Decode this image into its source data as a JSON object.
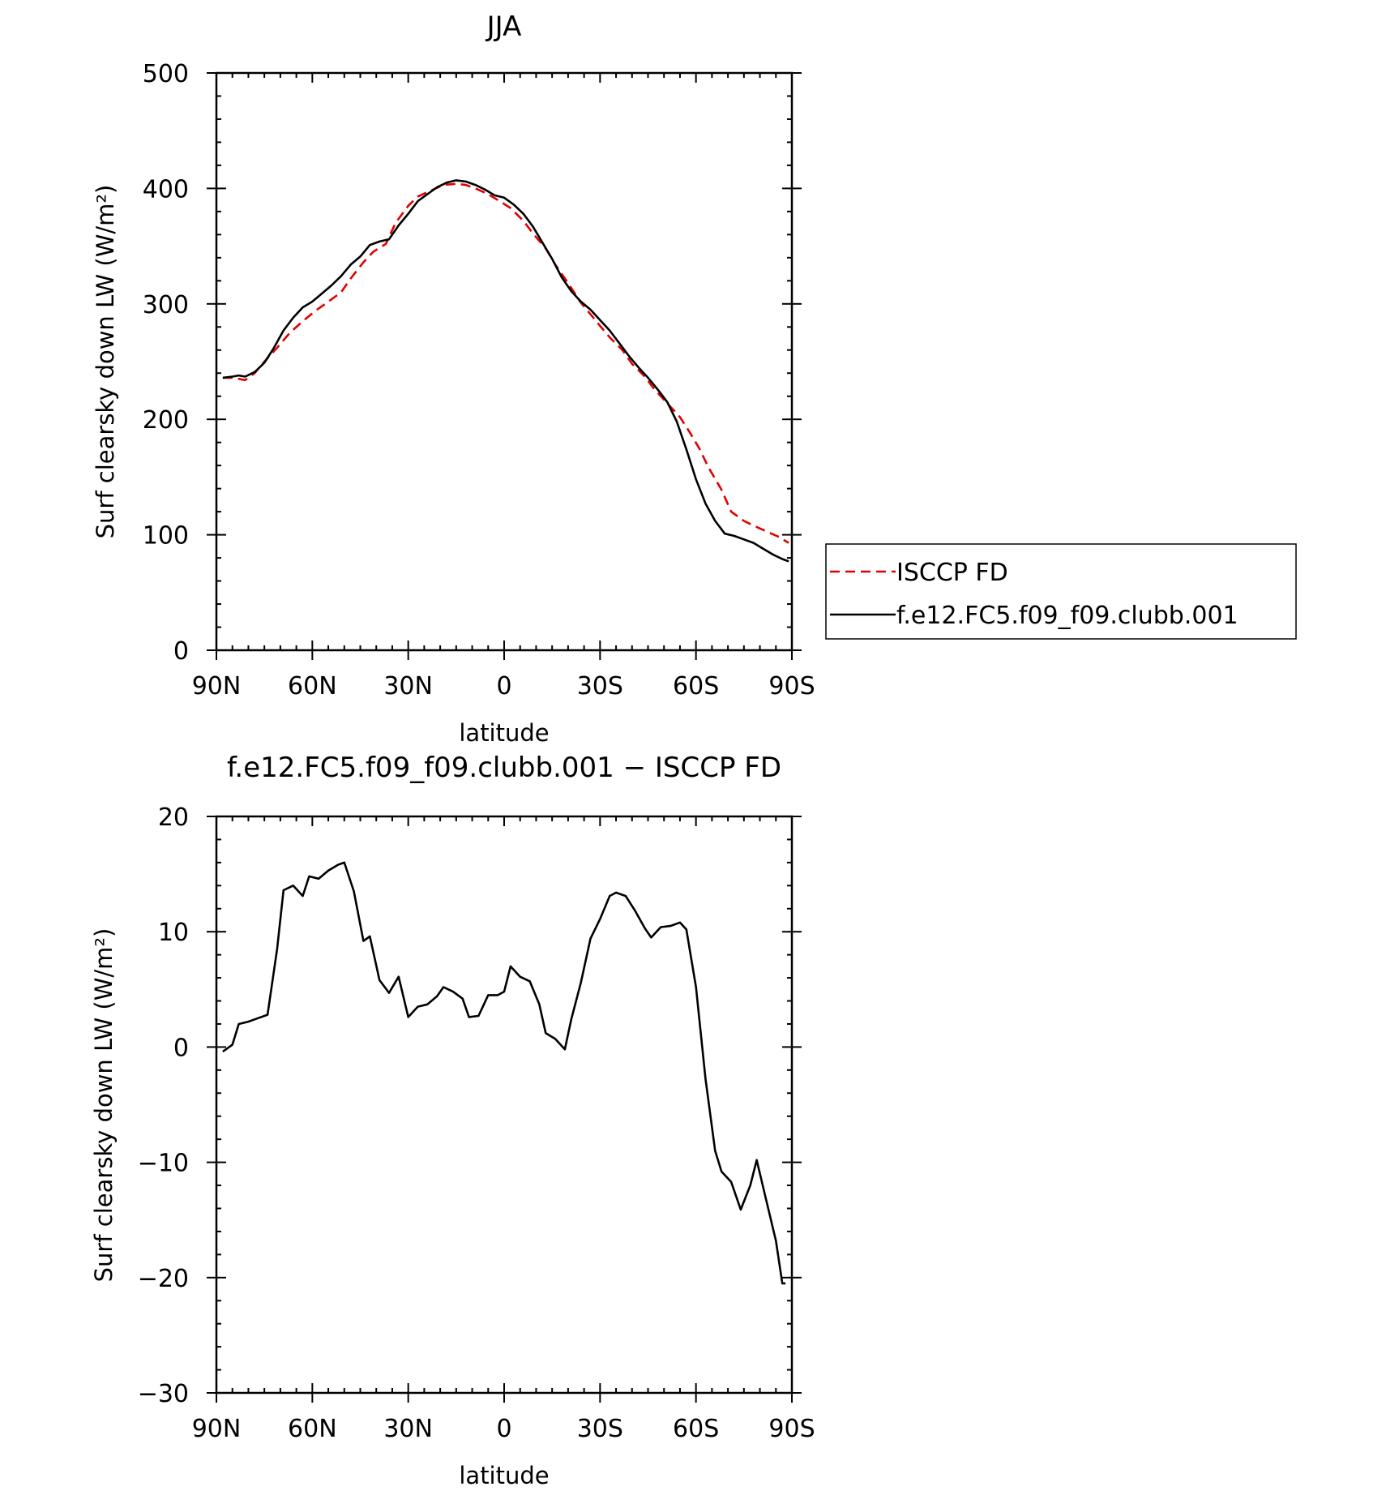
{
  "chart_data": [
    {
      "type": "line",
      "title": "JJA",
      "xlabel": "latitude",
      "ylabel": "Surf clearsky down LW (W/m²)",
      "xlim": [
        90,
        -90
      ],
      "ylim": [
        0,
        500
      ],
      "x_ticks": [
        {
          "value": 90,
          "label": "90N"
        },
        {
          "value": 60,
          "label": "60N"
        },
        {
          "value": 30,
          "label": "30N"
        },
        {
          "value": 0,
          "label": "0"
        },
        {
          "value": -30,
          "label": "30S"
        },
        {
          "value": -60,
          "label": "60S"
        },
        {
          "value": -90,
          "label": "90S"
        }
      ],
      "y_ticks": [
        0,
        100,
        200,
        300,
        400,
        500
      ],
      "legend": "right",
      "series": [
        {
          "name": "ISCCP FD",
          "color": "#e00000",
          "dash": "dashed",
          "x": [
            88,
            85,
            81,
            78,
            75,
            71,
            67,
            63,
            59,
            55,
            51,
            48,
            44,
            41,
            37,
            34,
            30,
            27,
            23,
            19,
            15,
            12,
            9,
            5,
            2,
            -2,
            -6,
            -9,
            -13,
            -16,
            -20,
            -24,
            -27,
            -30,
            -33,
            -37,
            -40,
            -44,
            -47,
            -51,
            -55,
            -58,
            -61,
            -64,
            -68,
            -71,
            -75,
            -78,
            -82,
            -86,
            -89
          ],
          "y": [
            236,
            236,
            234,
            240,
            250,
            262,
            275,
            285,
            294,
            302,
            310,
            322,
            336,
            345,
            352,
            370,
            385,
            393,
            398,
            403,
            404,
            403,
            400,
            395,
            390,
            383,
            372,
            361,
            348,
            334,
            318,
            301,
            291,
            281,
            271,
            260,
            248,
            237,
            226,
            214,
            202,
            189,
            175,
            158,
            139,
            120,
            112,
            108,
            103,
            98,
            93
          ]
        },
        {
          "name": "f.e12.FC5.f09_f09.clubb.001",
          "color": "#000000",
          "dash": "solid",
          "x": [
            88,
            85,
            83,
            81,
            78,
            75,
            72,
            69,
            66,
            63,
            60,
            57,
            54,
            51,
            48,
            45,
            42,
            39,
            36,
            33,
            30,
            27,
            24,
            21,
            18,
            15,
            12,
            9,
            6,
            3,
            0,
            -3,
            -6,
            -9,
            -12,
            -15,
            -18,
            -21,
            -24,
            -27,
            -30,
            -33,
            -36,
            -39,
            -42,
            -45,
            -48,
            -51,
            -54,
            -57,
            -60,
            -63,
            -66,
            -69,
            -72,
            -75,
            -78,
            -81,
            -84,
            -87,
            -89
          ],
          "y": [
            236,
            237,
            238,
            237,
            241,
            249,
            262,
            277,
            288,
            297,
            302,
            309,
            316,
            324,
            334,
            341,
            351,
            354,
            356,
            368,
            378,
            389,
            395,
            401,
            405,
            407,
            406,
            403,
            399,
            394,
            392,
            386,
            378,
            367,
            353,
            339,
            323,
            311,
            302,
            295,
            286,
            277,
            266,
            255,
            245,
            236,
            226,
            215,
            198,
            174,
            148,
            127,
            112,
            101,
            99,
            96,
            93,
            88,
            83,
            79,
            77
          ]
        }
      ]
    },
    {
      "type": "line",
      "title": "f.e12.FC5.f09_f09.clubb.001 − ISCCP FD",
      "xlabel": "latitude",
      "ylabel": "Surf clearsky down LW (W/m²)",
      "xlim": [
        90,
        -90
      ],
      "ylim": [
        -30,
        20
      ],
      "x_ticks": [
        {
          "value": 90,
          "label": "90N"
        },
        {
          "value": 60,
          "label": "60N"
        },
        {
          "value": 30,
          "label": "30N"
        },
        {
          "value": 0,
          "label": "0"
        },
        {
          "value": -30,
          "label": "30S"
        },
        {
          "value": -60,
          "label": "60S"
        },
        {
          "value": -90,
          "label": "90S"
        }
      ],
      "y_ticks": [
        -30,
        -20,
        -10,
        0,
        10,
        20
      ],
      "y_tick_labels": [
        "−30",
        "−20",
        "−10",
        "0",
        "10",
        "20"
      ],
      "series": [
        {
          "color": "#000000",
          "dash": "solid",
          "x": [
            88,
            85,
            83,
            80,
            77,
            74,
            71,
            69,
            66,
            63,
            61,
            58,
            55,
            52,
            50,
            47,
            44,
            42,
            39,
            36,
            33,
            30,
            27,
            24,
            21,
            19,
            16,
            13,
            11,
            8,
            5,
            2,
            0,
            -2,
            -5,
            -8,
            -11,
            -13,
            -16,
            -19,
            -21,
            -24,
            -27,
            -30,
            -33,
            -35,
            -38,
            -41,
            -44,
            -46,
            -49,
            -52,
            -55,
            -57,
            -60,
            -63,
            -66,
            -68,
            -71,
            -74,
            -77,
            -79,
            -82,
            -85,
            -87,
            -88
          ],
          "y": [
            -0.4,
            0.2,
            2.0,
            2.2,
            2.5,
            2.8,
            8.5,
            13.6,
            14.0,
            13.1,
            14.8,
            14.6,
            15.3,
            15.8,
            16.0,
            13.5,
            9.2,
            9.6,
            5.8,
            4.7,
            6.1,
            2.6,
            3.5,
            3.7,
            4.4,
            5.2,
            4.8,
            4.2,
            2.6,
            2.7,
            4.5,
            4.5,
            4.8,
            7.0,
            6.1,
            5.7,
            3.7,
            1.2,
            0.7,
            -0.2,
            2.4,
            5.6,
            9.4,
            11.1,
            13.1,
            13.4,
            13.1,
            11.8,
            10.3,
            9.5,
            10.4,
            10.5,
            10.8,
            10.2,
            5.2,
            -2.8,
            -9.0,
            -10.8,
            -11.7,
            -14.1,
            -12.0,
            -9.8,
            -13.3,
            -16.8,
            -20.5,
            -20.5
          ]
        }
      ]
    }
  ],
  "legend": {
    "entries": [
      "ISCCP FD",
      "f.e12.FC5.f09_f09.clubb.001"
    ]
  }
}
